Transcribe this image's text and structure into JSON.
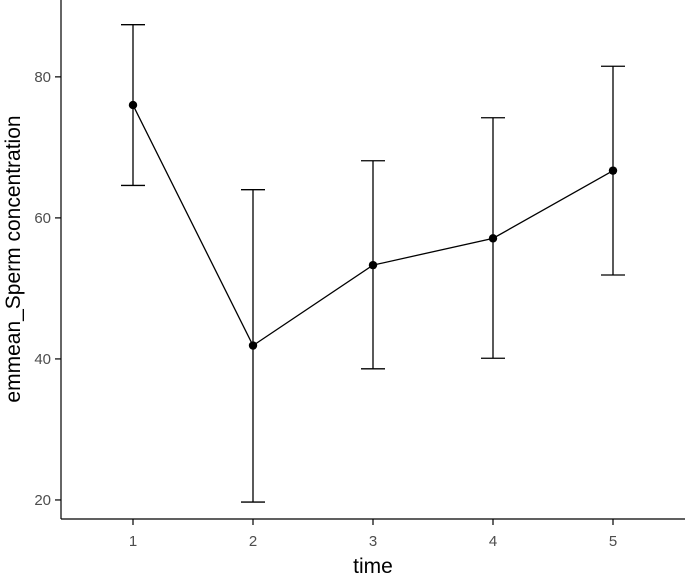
{
  "chart_data": {
    "type": "line",
    "xlabel": "time",
    "ylabel": "emmean_Sperm concentration",
    "x": [
      1,
      2,
      3,
      4,
      5
    ],
    "series": [
      {
        "values": [
          76.0,
          41.9,
          53.3,
          57.1,
          66.7
        ],
        "lower": [
          64.6,
          19.7,
          38.6,
          40.1,
          51.9
        ],
        "upper": [
          87.4,
          64.0,
          68.1,
          74.2,
          81.5
        ]
      }
    ],
    "x_ticks": [
      "1",
      "2",
      "3",
      "4",
      "5"
    ],
    "y_ticks": [
      20,
      40,
      60,
      80
    ],
    "xlim": [
      0.4,
      5.6
    ],
    "ylim": [
      17.3,
      90.9
    ],
    "grid": false,
    "line_color": "#000000",
    "marker_color": "#000000"
  }
}
